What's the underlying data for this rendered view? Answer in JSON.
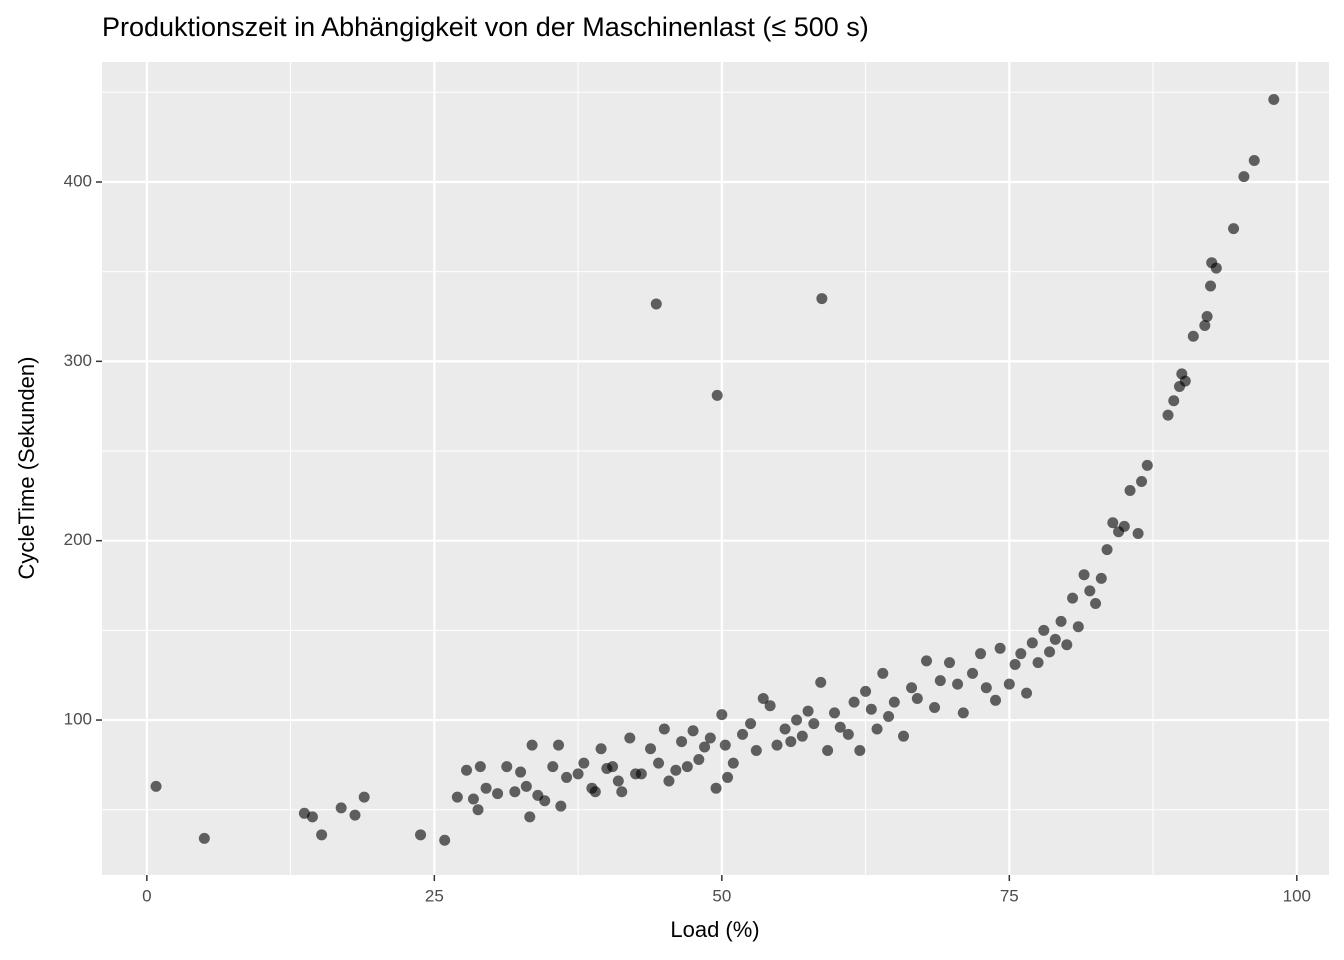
{
  "chart_data": {
    "type": "scatter",
    "title": "Produktionszeit in Abhängigkeit von der Maschinenlast (≤ 500 s)",
    "x_label": "Load (%)",
    "y_label": "CycleTime (Sekunden)",
    "color": "#000000",
    "opacity": 0.6,
    "grid": true,
    "xlim": [
      -3.9,
      102.8
    ],
    "ylim": [
      13.6,
      466.9
    ],
    "xticks": [
      0,
      25,
      50,
      75,
      100
    ],
    "yticks": [
      100,
      200,
      300,
      400
    ],
    "x": [
      0.8,
      5,
      13.7,
      14.4,
      15.2,
      16.9,
      18.1,
      18.9,
      23.8,
      25.9,
      27,
      27.8,
      28.4,
      28.8,
      29,
      29.5,
      30.5,
      31.3,
      32,
      32.5,
      33,
      33.3,
      33.5,
      34,
      34.6,
      35.3,
      35.8,
      36,
      36.5,
      37.5,
      38,
      38.7,
      39,
      39.5,
      40,
      40.5,
      41,
      41.3,
      42,
      42.5,
      43,
      43.8,
      44.5,
      45,
      45.4,
      46,
      46.5,
      47,
      47.5,
      48,
      48.5,
      49,
      49.5,
      50,
      50.3,
      50.5,
      51,
      51.8,
      52.5,
      53,
      53.6,
      54.2,
      54.8,
      55.5,
      56,
      56.5,
      57,
      57.5,
      58,
      58.6,
      59.2,
      59.8,
      60.3,
      61,
      61.5,
      62,
      62.5,
      63,
      63.5,
      64,
      64.5,
      65,
      65.8,
      66.5,
      67,
      67.8,
      68.5,
      69,
      69.8,
      70.5,
      71,
      71.8,
      72.5,
      73,
      73.8,
      74.2,
      75,
      75.5,
      76,
      76.5,
      77,
      77.5,
      78,
      78.5,
      79,
      79.5,
      80,
      80.5,
      81,
      81.5,
      82,
      82.5,
      83,
      44.3,
      49.6,
      58.7,
      83.5,
      84,
      84.5,
      85,
      85.5,
      86.2,
      86.5,
      87,
      88.8,
      89.3,
      89.8,
      90,
      90.3,
      91,
      92,
      92.2,
      92.5,
      92.6,
      93,
      94.5,
      95.4,
      96.3,
      98
    ],
    "y": [
      63,
      34,
      48,
      46,
      36,
      51,
      47,
      57,
      36,
      33,
      57,
      72,
      56,
      50,
      74,
      62,
      59,
      74,
      60,
      71,
      63,
      46,
      86,
      58,
      55,
      74,
      86,
      52,
      68,
      70,
      76,
      62,
      60,
      84,
      73,
      74,
      66,
      60,
      90,
      70,
      70,
      84,
      76,
      95,
      66,
      72,
      88,
      74,
      94,
      78,
      85,
      90,
      62,
      103,
      86,
      68,
      76,
      92,
      98,
      83,
      112,
      108,
      86,
      95,
      88,
      100,
      91,
      105,
      98,
      121,
      83,
      104,
      96,
      92,
      110,
      83,
      116,
      106,
      95,
      126,
      102,
      110,
      91,
      118,
      112,
      133,
      107,
      122,
      132,
      120,
      104,
      126,
      137,
      118,
      111,
      140,
      120,
      131,
      137,
      115,
      143,
      132,
      150,
      138,
      145,
      155,
      142,
      168,
      152,
      181,
      172,
      165,
      179,
      332,
      281,
      335,
      195,
      210,
      205,
      208,
      228,
      204,
      233,
      242,
      270,
      278,
      286,
      293,
      289,
      314,
      320,
      325,
      342,
      355,
      352,
      374,
      403,
      412,
      446
    ]
  }
}
